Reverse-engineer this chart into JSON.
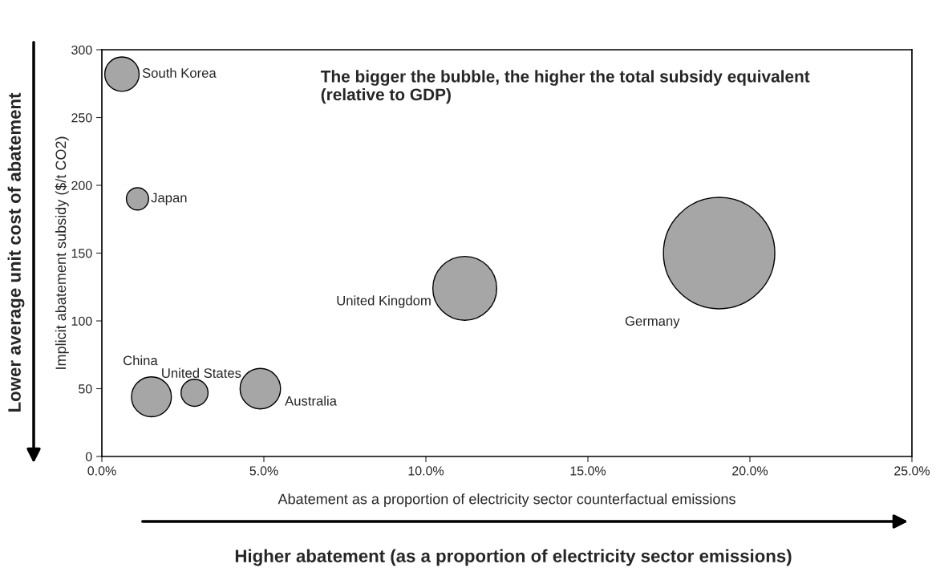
{
  "chart_data": {
    "type": "bubble",
    "xlabel": "Abatement as a proportion of electricity sector counterfactual emissions",
    "ylabel": "Implicit abatement subsidy ($/t CO2)",
    "xlim": [
      0,
      25
    ],
    "ylim": [
      0,
      300
    ],
    "xticks": [
      {
        "value": 0,
        "label": "0.0%"
      },
      {
        "value": 5,
        "label": "5.0%"
      },
      {
        "value": 10,
        "label": "10.0%"
      },
      {
        "value": 15,
        "label": "15.0%"
      },
      {
        "value": 20,
        "label": "20.0%"
      },
      {
        "value": 25,
        "label": "25.0%"
      }
    ],
    "yticks": [
      0,
      50,
      100,
      150,
      200,
      250,
      300
    ],
    "grid": false,
    "legend": false,
    "series": [
      {
        "name": "South Korea",
        "color": "#a6a6a6",
        "x": [
          0.62
        ],
        "values": [
          282
        ],
        "sizes": [
          0.095
        ]
      },
      {
        "name": "Japan",
        "color": "#a6a6a6",
        "x": [
          1.1
        ],
        "values": [
          190
        ],
        "sizes": [
          0.04
        ]
      },
      {
        "name": "China",
        "color": "#a6a6a6",
        "x": [
          1.53
        ],
        "values": [
          44
        ],
        "sizes": [
          0.128
        ]
      },
      {
        "name": "United States",
        "color": "#a6a6a6",
        "x": [
          2.86
        ],
        "values": [
          47
        ],
        "sizes": [
          0.059
        ]
      },
      {
        "name": "Australia",
        "color": "#a6a6a6",
        "x": [
          4.89
        ],
        "values": [
          50
        ],
        "sizes": [
          0.132
        ]
      },
      {
        "name": "United Kingdom",
        "color": "#a6a6a6",
        "x": [
          11.2
        ],
        "values": [
          124
        ],
        "sizes": [
          0.329
        ]
      },
      {
        "name": "Germany",
        "color": "#a6a6a6",
        "x": [
          19.05
        ],
        "values": [
          150
        ],
        "sizes": [
          1
        ]
      }
    ],
    "annotations": [
      "The bigger the bubble, the higher the total subsidy equivalent (relative to GDP)",
      "Lower average unit cost of abatement",
      "Higher abatement (as a proportion of electricity sector emissions)"
    ]
  }
}
